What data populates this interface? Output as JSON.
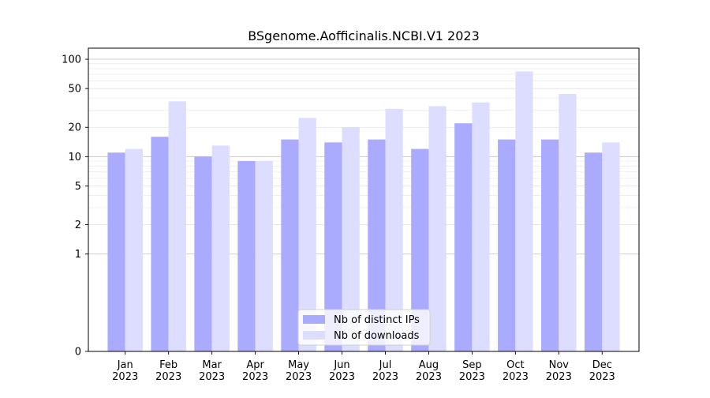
{
  "chart_data": {
    "type": "bar",
    "title": "BSgenome.Aofficinalis.NCBI.V1 2023",
    "xlabel": "",
    "ylabel": "",
    "yscale": "symlog",
    "categories": [
      "Jan\n2023",
      "Feb\n2023",
      "Mar\n2023",
      "Apr\n2023",
      "May\n2023",
      "Jun\n2023",
      "Jul\n2023",
      "Aug\n2023",
      "Sep\n2023",
      "Oct\n2023",
      "Nov\n2023",
      "Dec\n2023"
    ],
    "series": [
      {
        "name": "Nb of distinct IPs",
        "color": "#aaaaff",
        "values": [
          11,
          16,
          10,
          9,
          15,
          14,
          15,
          12,
          22,
          15,
          15,
          11
        ]
      },
      {
        "name": "Nb of downloads",
        "color": "#ddddff",
        "values": [
          12,
          37,
          13,
          9,
          25,
          20,
          31,
          33,
          36,
          75,
          44,
          14
        ]
      }
    ],
    "yticks": [
      0,
      1,
      2,
      5,
      10,
      20,
      50,
      100
    ],
    "ylim": [
      0,
      130
    ],
    "grid": true,
    "legend_position": "bottom-center"
  }
}
